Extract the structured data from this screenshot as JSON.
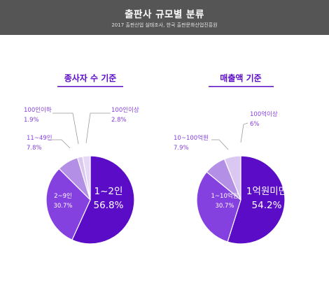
{
  "header": {
    "title": "출판사 규모별 분류",
    "subtitle": "2017 출판산업 실태조사, 한국 출판문화산업진흥원"
  },
  "chart_data": [
    {
      "type": "pie",
      "title": "종사자 수 기준",
      "slices": [
        {
          "label": "1~2인",
          "value": 56.8,
          "display": "56.8%",
          "color": "#5b0cc7"
        },
        {
          "label": "2~9인",
          "value": 30.7,
          "display": "30.7%",
          "color": "#8540e0"
        },
        {
          "label": "11~49인",
          "value": 7.8,
          "display": "7.8%",
          "color": "#b48fe6"
        },
        {
          "label": "100인이하",
          "value": 1.9,
          "display": "1.9%",
          "color": "#dac8f2"
        },
        {
          "label": "100인이상",
          "value": 2.8,
          "display": "2.8%",
          "color": "#e5d9f6"
        }
      ]
    },
    {
      "type": "pie",
      "title": "매출액 기준",
      "slices": [
        {
          "label": "1억원미만",
          "value": 54.2,
          "display": "54.2%",
          "color": "#5b0cc7"
        },
        {
          "label": "1~10억원",
          "value": 30.7,
          "display": "30.7%",
          "color": "#8540e0"
        },
        {
          "label": "10~100억원",
          "value": 7.9,
          "display": "7.9%",
          "color": "#b48fe6"
        },
        {
          "label": "100억이상",
          "value": 6,
          "display": "6%",
          "color": "#dac8f2"
        }
      ]
    }
  ]
}
